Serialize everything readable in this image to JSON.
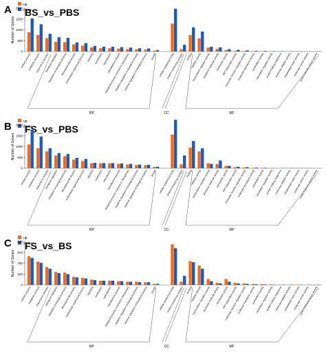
{
  "colors": {
    "up": "#f06a21",
    "down": "#1f5bb5",
    "axis": "#555555"
  },
  "chart_data": [
    {
      "panel": "A",
      "type": "bar",
      "title": "BS_vs_PBS",
      "ylabel": "Number of Genes",
      "ylim": [
        0,
        2000
      ],
      "yticks": [
        "0",
        "500",
        "1000",
        "1500",
        "2000"
      ],
      "legend": {
        "placement": "top-left",
        "labels": [
          "up",
          "down"
        ]
      },
      "groups": [
        "BP",
        "CC",
        "MF"
      ],
      "categories": [
        "cellular process",
        "metabolic process",
        "response to stimulus",
        "biological regulation",
        "regulation of biological process",
        "developmental process",
        "multicellular organismal process",
        "signaling",
        "localization",
        "reproduction",
        "reproductive process",
        "biological process involved in interspecies",
        "negative regulation of biological process",
        "positive regulation of biological process",
        "growth",
        "CC",
        "cellular anatomical entity",
        "protein-containing complex",
        "binding",
        "catalytic activity",
        "transcription regulator activity",
        "structural molecule activity",
        "transporter activity",
        "ATP-dependent activity",
        "molecular function regulator activity",
        "molecular transducer activity",
        "antioxidant activity",
        "translation regulator activity",
        "protein folding chaperone",
        "molecular adaptor activity",
        "cytoskeletal motor activity",
        "molecular carrier activity",
        "small molecule sensor activity"
      ],
      "series": [
        {
          "name": "up",
          "values": [
            890,
            760,
            620,
            450,
            430,
            330,
            270,
            190,
            150,
            150,
            130,
            110,
            100,
            90,
            40,
            0,
            1290,
            110,
            760,
            610,
            180,
            120,
            70,
            30,
            20,
            15,
            10,
            5,
            5,
            5,
            5,
            5,
            5
          ]
        },
        {
          "name": "down",
          "values": [
            1530,
            1260,
            820,
            660,
            630,
            420,
            390,
            260,
            220,
            220,
            200,
            180,
            150,
            140,
            60,
            0,
            1980,
            310,
            1120,
            920,
            220,
            190,
            110,
            80,
            50,
            30,
            25,
            15,
            10,
            10,
            10,
            5,
            5
          ]
        }
      ]
    },
    {
      "panel": "B",
      "type": "bar",
      "title": "FS_vs_PBS",
      "ylabel": "Number of Genes",
      "ylim": [
        0,
        2000
      ],
      "yticks": [
        "0",
        "500",
        "1000",
        "1500",
        "2000"
      ],
      "legend": {
        "placement": "top-left",
        "labels": [
          "up",
          "down"
        ]
      },
      "groups": [
        "BP",
        "CC",
        "MF"
      ],
      "categories": [
        "cellular process",
        "metabolic process",
        "response to stimulus",
        "biological regulation",
        "regulation of biological process",
        "developmental process",
        "multicellular organismal process",
        "signaling",
        "localization",
        "reproduction",
        "reproductive process",
        "biological process involved in interspecies",
        "negative regulation of biological process",
        "positive regulation of biological process",
        "growth",
        "CC",
        "cellular anatomical entity",
        "protein-containing complex",
        "binding",
        "catalytic activity",
        "transcription regulator activity",
        "structural molecule activity",
        "transporter activity",
        "ATP-dependent activity",
        "molecular function regulator activity",
        "molecular transducer activity",
        "antioxidant activity",
        "translation regulator activity",
        "protein folding chaperone",
        "molecular adaptor activity",
        "cytoskeletal motor activity",
        "molecular carrier activity",
        "small molecule sensor activity"
      ],
      "series": [
        {
          "name": "up",
          "values": [
            1100,
            920,
            780,
            590,
            560,
            400,
            330,
            230,
            220,
            220,
            200,
            170,
            150,
            140,
            60,
            0,
            1560,
            180,
            960,
            780,
            230,
            190,
            110,
            50,
            30,
            20,
            15,
            10,
            5,
            5,
            5,
            5,
            5
          ]
        },
        {
          "name": "down",
          "values": [
            1780,
            1470,
            920,
            700,
            660,
            480,
            430,
            250,
            240,
            240,
            220,
            200,
            170,
            160,
            70,
            0,
            2240,
            590,
            1260,
            920,
            200,
            360,
            110,
            70,
            50,
            30,
            20,
            10,
            10,
            10,
            5,
            5,
            5
          ]
        }
      ]
    },
    {
      "panel": "C",
      "type": "bar",
      "title": "FS_vs_BS",
      "ylabel": "Number of Genes",
      "ylim": [
        0,
        800
      ],
      "yticks": [
        "0",
        "200",
        "400",
        "600",
        "800"
      ],
      "legend": {
        "placement": "top-left",
        "labels": [
          "up",
          "down"
        ]
      },
      "groups": [
        "BP",
        "CC",
        "MF"
      ],
      "categories": [
        "cellular process",
        "metabolic process",
        "response to stimulus",
        "biological regulation",
        "regulation of biological process",
        "developmental process",
        "multicellular organismal process",
        "signaling",
        "localization",
        "reproduction",
        "reproductive process",
        "biological process involved in interspecies",
        "negative regulation of biological process",
        "positive regulation of biological process",
        "growth",
        "CC",
        "cellular anatomical entity",
        "protein-containing complex",
        "binding",
        "catalytic activity",
        "transcription regulator activity",
        "structural molecule activity",
        "transporter activity",
        "ATP-dependent activity",
        "molecular function regulator activity",
        "molecular transducer activity",
        "antioxidant activity",
        "translation regulator activity",
        "protein folding chaperone",
        "molecular adaptor activity",
        "cytoskeletal motor activity",
        "molecular carrier activity",
        "small molecule sensor activity"
      ],
      "series": [
        {
          "name": "up",
          "values": [
            530,
            430,
            330,
            240,
            230,
            150,
            130,
            100,
            80,
            80,
            70,
            60,
            60,
            50,
            20,
            0,
            750,
            60,
            440,
            360,
            110,
            40,
            110,
            40,
            30,
            20,
            15,
            10,
            5,
            5,
            5,
            5,
            5
          ]
        },
        {
          "name": "down",
          "values": [
            500,
            410,
            300,
            220,
            200,
            140,
            120,
            90,
            80,
            80,
            70,
            60,
            50,
            50,
            20,
            0,
            680,
            170,
            420,
            300,
            70,
            30,
            60,
            30,
            20,
            15,
            10,
            5,
            5,
            5,
            5,
            5,
            5
          ]
        }
      ]
    }
  ]
}
